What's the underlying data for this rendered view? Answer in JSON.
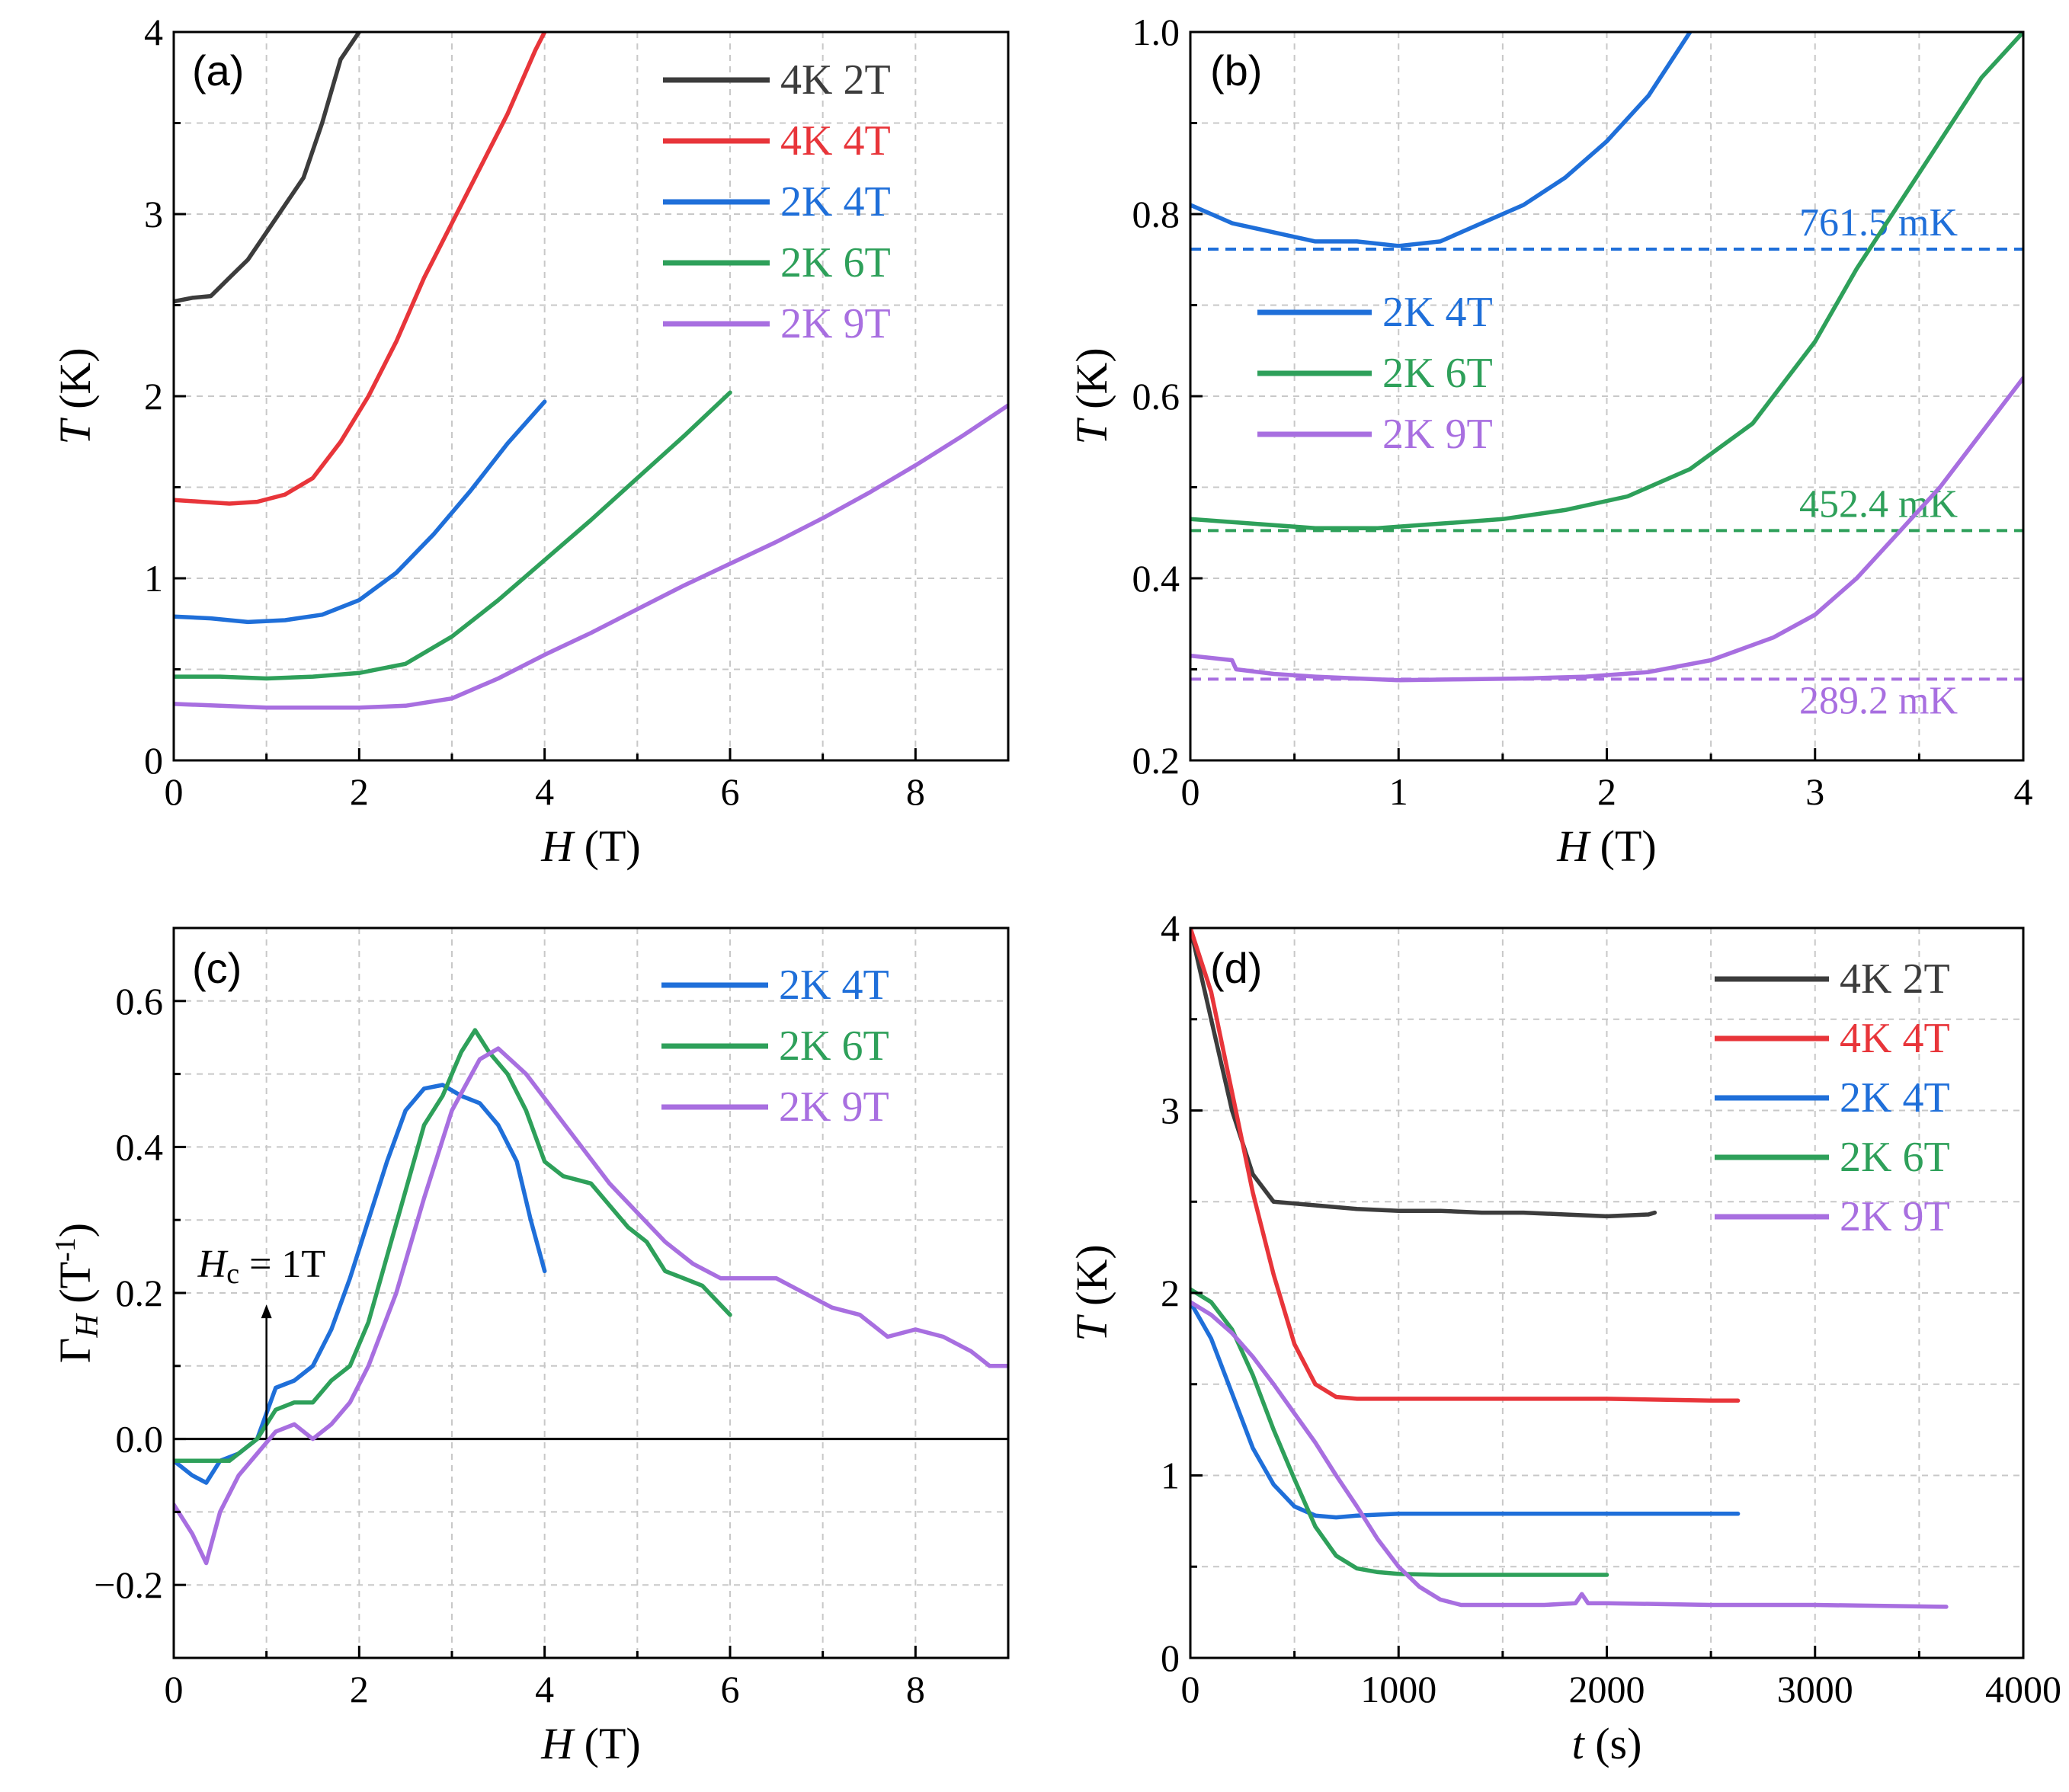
{
  "chart_data": [
    {
      "id": "a",
      "type": "line",
      "panel_label": "(a)",
      "xlabel": {
        "sym": "H",
        "unit": " (T)"
      },
      "ylabel": {
        "sym": "T",
        "unit": " (K)"
      },
      "xlim": [
        0,
        9
      ],
      "ylim": [
        0,
        4
      ],
      "xticks": [
        0,
        2,
        4,
        6,
        8
      ],
      "yticks": [
        0,
        1,
        2,
        3,
        4
      ],
      "grid": true,
      "legend_position": "top-right",
      "series": [
        {
          "name": "4K 2T",
          "color": "#3c3c3c",
          "x": [
            0,
            0.2,
            0.4,
            0.6,
            0.8,
            1.0,
            1.2,
            1.4,
            1.6,
            1.8,
            2.0
          ],
          "y": [
            2.52,
            2.54,
            2.55,
            2.65,
            2.75,
            2.9,
            3.05,
            3.2,
            3.5,
            3.85,
            4.0
          ]
        },
        {
          "name": "4K 4T",
          "color": "#e8353a",
          "x": [
            0,
            0.3,
            0.6,
            0.9,
            1.2,
            1.5,
            1.8,
            2.1,
            2.4,
            2.7,
            3.0,
            3.3,
            3.6,
            3.9,
            4.0
          ],
          "y": [
            1.43,
            1.42,
            1.41,
            1.42,
            1.46,
            1.55,
            1.75,
            2.0,
            2.3,
            2.65,
            2.95,
            3.25,
            3.55,
            3.9,
            4.0
          ]
        },
        {
          "name": "2K 4T",
          "color": "#1f6fd9",
          "x": [
            0,
            0.4,
            0.8,
            1.2,
            1.6,
            2.0,
            2.4,
            2.8,
            3.2,
            3.6,
            4.0
          ],
          "y": [
            0.79,
            0.78,
            0.76,
            0.77,
            0.8,
            0.88,
            1.03,
            1.24,
            1.48,
            1.74,
            1.97
          ]
        },
        {
          "name": "2K 6T",
          "color": "#2ea05a",
          "x": [
            0,
            0.5,
            1.0,
            1.5,
            2.0,
            2.5,
            3.0,
            3.5,
            4.0,
            4.5,
            5.0,
            5.5,
            6.0
          ],
          "y": [
            0.46,
            0.46,
            0.45,
            0.46,
            0.48,
            0.53,
            0.68,
            0.88,
            1.1,
            1.32,
            1.55,
            1.78,
            2.02
          ]
        },
        {
          "name": "2K 9T",
          "color": "#a86fe0",
          "x": [
            0,
            0.5,
            1.0,
            1.5,
            2.0,
            2.5,
            3.0,
            3.5,
            4.0,
            4.5,
            5.0,
            5.5,
            6.0,
            6.5,
            7.0,
            7.5,
            8.0,
            8.5,
            9.0
          ],
          "y": [
            0.31,
            0.3,
            0.29,
            0.29,
            0.29,
            0.3,
            0.34,
            0.45,
            0.58,
            0.7,
            0.83,
            0.96,
            1.08,
            1.2,
            1.33,
            1.47,
            1.62,
            1.78,
            1.95
          ]
        }
      ]
    },
    {
      "id": "b",
      "type": "line",
      "panel_label": "(b)",
      "xlabel": {
        "sym": "H",
        "unit": " (T)"
      },
      "ylabel": {
        "sym": "T",
        "unit": " (K)"
      },
      "xlim": [
        0,
        4
      ],
      "ylim": [
        0.2,
        1.0
      ],
      "xticks": [
        0,
        1,
        2,
        3,
        4
      ],
      "yticks": [
        0.2,
        0.4,
        0.6,
        0.8,
        1.0
      ],
      "ytick_labels": [
        "0.2",
        "0.4",
        "0.6",
        "0.8",
        "1.0"
      ],
      "grid": true,
      "legend_position": "center-left",
      "series": [
        {
          "name": "2K 4T",
          "color": "#1f6fd9",
          "x": [
            0,
            0.2,
            0.4,
            0.6,
            0.8,
            1.0,
            1.2,
            1.4,
            1.6,
            1.8,
            2.0,
            2.2,
            2.4
          ],
          "y": [
            0.81,
            0.79,
            0.78,
            0.77,
            0.77,
            0.765,
            0.77,
            0.79,
            0.81,
            0.84,
            0.88,
            0.93,
            1.0
          ]
        },
        {
          "name": "2K 6T",
          "color": "#2ea05a",
          "x": [
            0,
            0.3,
            0.6,
            0.9,
            1.2,
            1.5,
            1.8,
            2.1,
            2.4,
            2.7,
            3.0,
            3.2,
            3.4,
            3.6,
            3.8,
            4.0
          ],
          "y": [
            0.465,
            0.46,
            0.455,
            0.455,
            0.46,
            0.465,
            0.475,
            0.49,
            0.52,
            0.57,
            0.66,
            0.74,
            0.81,
            0.88,
            0.95,
            1.0
          ]
        },
        {
          "name": "2K 9T",
          "color": "#a86fe0",
          "x": [
            0,
            0.2,
            0.22,
            0.4,
            0.6,
            0.8,
            1.0,
            1.3,
            1.6,
            1.9,
            2.2,
            2.5,
            2.8,
            3.0,
            3.2,
            3.4,
            3.6,
            3.8,
            4.0
          ],
          "y": [
            0.315,
            0.31,
            0.3,
            0.295,
            0.292,
            0.29,
            0.288,
            0.289,
            0.29,
            0.292,
            0.297,
            0.31,
            0.335,
            0.36,
            0.4,
            0.45,
            0.5,
            0.56,
            0.62
          ]
        }
      ],
      "reference_lines": [
        {
          "y": 0.7615,
          "color": "#1f6fd9",
          "label": "761.5 mK"
        },
        {
          "y": 0.4524,
          "color": "#2ea05a",
          "label": "452.4 mK"
        },
        {
          "y": 0.2892,
          "color": "#a86fe0",
          "label": "289.2 mK"
        }
      ]
    },
    {
      "id": "c",
      "type": "line",
      "panel_label": "(c)",
      "xlabel": {
        "sym": "H",
        "unit": " (T)"
      },
      "ylabel": {
        "sym": "Γ",
        "sub": "H",
        "unit": " (T",
        "sup": "-1",
        "tail": ")"
      },
      "xlim": [
        0,
        9
      ],
      "ylim": [
        -0.3,
        0.7
      ],
      "xticks": [
        0,
        2,
        4,
        6,
        8
      ],
      "yticks": [
        -0.2,
        0.0,
        0.2,
        0.4,
        0.6
      ],
      "ytick_labels": [
        "−0.2",
        "0.0",
        "0.2",
        "0.4",
        "0.6"
      ],
      "grid": true,
      "zero_line": true,
      "legend_position": "top-right",
      "annotation": {
        "sym": "H",
        "sub": "c",
        "text": " = 1T",
        "x": 1.0,
        "y_from": 0.0,
        "y_to": 0.18
      },
      "series": [
        {
          "name": "2K 4T",
          "color": "#1f6fd9",
          "x": [
            0,
            0.2,
            0.35,
            0.5,
            0.7,
            0.9,
            1.1,
            1.3,
            1.5,
            1.7,
            1.9,
            2.1,
            2.3,
            2.5,
            2.7,
            2.9,
            3.1,
            3.3,
            3.5,
            3.7,
            3.85,
            4.0
          ],
          "y": [
            -0.03,
            -0.05,
            -0.06,
            -0.03,
            -0.02,
            0.0,
            0.07,
            0.08,
            0.1,
            0.15,
            0.22,
            0.3,
            0.38,
            0.45,
            0.48,
            0.485,
            0.47,
            0.46,
            0.43,
            0.38,
            0.3,
            0.23
          ]
        },
        {
          "name": "2K 6T",
          "color": "#2ea05a",
          "x": [
            0,
            0.3,
            0.6,
            0.9,
            1.1,
            1.3,
            1.5,
            1.7,
            1.9,
            2.1,
            2.3,
            2.5,
            2.7,
            2.9,
            3.1,
            3.25,
            3.4,
            3.6,
            3.8,
            4.0,
            4.2,
            4.5,
            4.7,
            4.9,
            5.1,
            5.3,
            5.5,
            5.7,
            6.0
          ],
          "y": [
            -0.03,
            -0.03,
            -0.03,
            0.0,
            0.04,
            0.05,
            0.05,
            0.08,
            0.1,
            0.16,
            0.25,
            0.34,
            0.43,
            0.47,
            0.53,
            0.56,
            0.53,
            0.5,
            0.45,
            0.38,
            0.36,
            0.35,
            0.32,
            0.29,
            0.27,
            0.23,
            0.22,
            0.21,
            0.17
          ]
        },
        {
          "name": "2K 9T",
          "color": "#a86fe0",
          "x": [
            0,
            0.2,
            0.35,
            0.5,
            0.7,
            0.9,
            1.1,
            1.3,
            1.5,
            1.7,
            1.9,
            2.1,
            2.4,
            2.7,
            3.0,
            3.3,
            3.5,
            3.8,
            4.1,
            4.4,
            4.7,
            5.0,
            5.3,
            5.6,
            5.9,
            6.2,
            6.5,
            6.8,
            7.1,
            7.4,
            7.7,
            8.0,
            8.3,
            8.6,
            8.8,
            9.0
          ],
          "y": [
            -0.09,
            -0.13,
            -0.17,
            -0.1,
            -0.05,
            -0.02,
            0.01,
            0.02,
            0.0,
            0.02,
            0.05,
            0.1,
            0.2,
            0.33,
            0.45,
            0.52,
            0.535,
            0.5,
            0.45,
            0.4,
            0.35,
            0.31,
            0.27,
            0.24,
            0.22,
            0.22,
            0.22,
            0.2,
            0.18,
            0.17,
            0.14,
            0.15,
            0.14,
            0.12,
            0.1,
            0.1
          ]
        }
      ]
    },
    {
      "id": "d",
      "type": "line",
      "panel_label": "(d)",
      "xlabel": {
        "sym": "t",
        "unit": " (s)"
      },
      "ylabel": {
        "sym": "T",
        "unit": " (K)"
      },
      "xlim": [
        0,
        4000
      ],
      "ylim": [
        0,
        4
      ],
      "xticks": [
        0,
        1000,
        2000,
        3000,
        4000
      ],
      "yticks": [
        0,
        1,
        2,
        3,
        4
      ],
      "grid": true,
      "legend_position": "top-right",
      "series": [
        {
          "name": "4K 2T",
          "color": "#3c3c3c",
          "x": [
            0,
            100,
            200,
            300,
            400,
            600,
            800,
            1000,
            1200,
            1400,
            1600,
            1800,
            2000,
            2200,
            2230
          ],
          "y": [
            4.0,
            3.5,
            3.0,
            2.65,
            2.5,
            2.48,
            2.46,
            2.45,
            2.45,
            2.44,
            2.44,
            2.43,
            2.42,
            2.43,
            2.44
          ]
        },
        {
          "name": "4K 4T",
          "color": "#e8353a",
          "x": [
            0,
            100,
            200,
            300,
            400,
            500,
            600,
            700,
            800,
            1000,
            1500,
            2000,
            2500,
            2630
          ],
          "y": [
            4.0,
            3.65,
            3.1,
            2.55,
            2.1,
            1.72,
            1.5,
            1.43,
            1.42,
            1.42,
            1.42,
            1.42,
            1.41,
            1.41
          ]
        },
        {
          "name": "2K 4T",
          "color": "#1f6fd9",
          "x": [
            0,
            100,
            200,
            300,
            400,
            500,
            600,
            700,
            800,
            1000,
            1500,
            2000,
            2630
          ],
          "y": [
            1.95,
            1.75,
            1.45,
            1.15,
            0.95,
            0.83,
            0.78,
            0.77,
            0.78,
            0.79,
            0.79,
            0.79,
            0.79
          ]
        },
        {
          "name": "2K 6T",
          "color": "#2ea05a",
          "x": [
            0,
            100,
            200,
            300,
            400,
            500,
            600,
            700,
            800,
            900,
            1000,
            1200,
            1500,
            2000
          ],
          "y": [
            2.02,
            1.95,
            1.8,
            1.55,
            1.25,
            0.98,
            0.72,
            0.56,
            0.49,
            0.47,
            0.46,
            0.455,
            0.455,
            0.455
          ]
        },
        {
          "name": "2K 9T",
          "color": "#a86fe0",
          "x": [
            0,
            100,
            200,
            300,
            400,
            500,
            600,
            700,
            800,
            900,
            1000,
            1100,
            1200,
            1300,
            1400,
            1500,
            1700,
            1850,
            1880,
            1910,
            2000,
            2500,
            3000,
            3630
          ],
          "y": [
            1.95,
            1.88,
            1.78,
            1.65,
            1.5,
            1.34,
            1.18,
            1.0,
            0.83,
            0.65,
            0.5,
            0.39,
            0.32,
            0.29,
            0.29,
            0.29,
            0.29,
            0.3,
            0.35,
            0.3,
            0.3,
            0.29,
            0.29,
            0.28
          ]
        }
      ]
    }
  ]
}
